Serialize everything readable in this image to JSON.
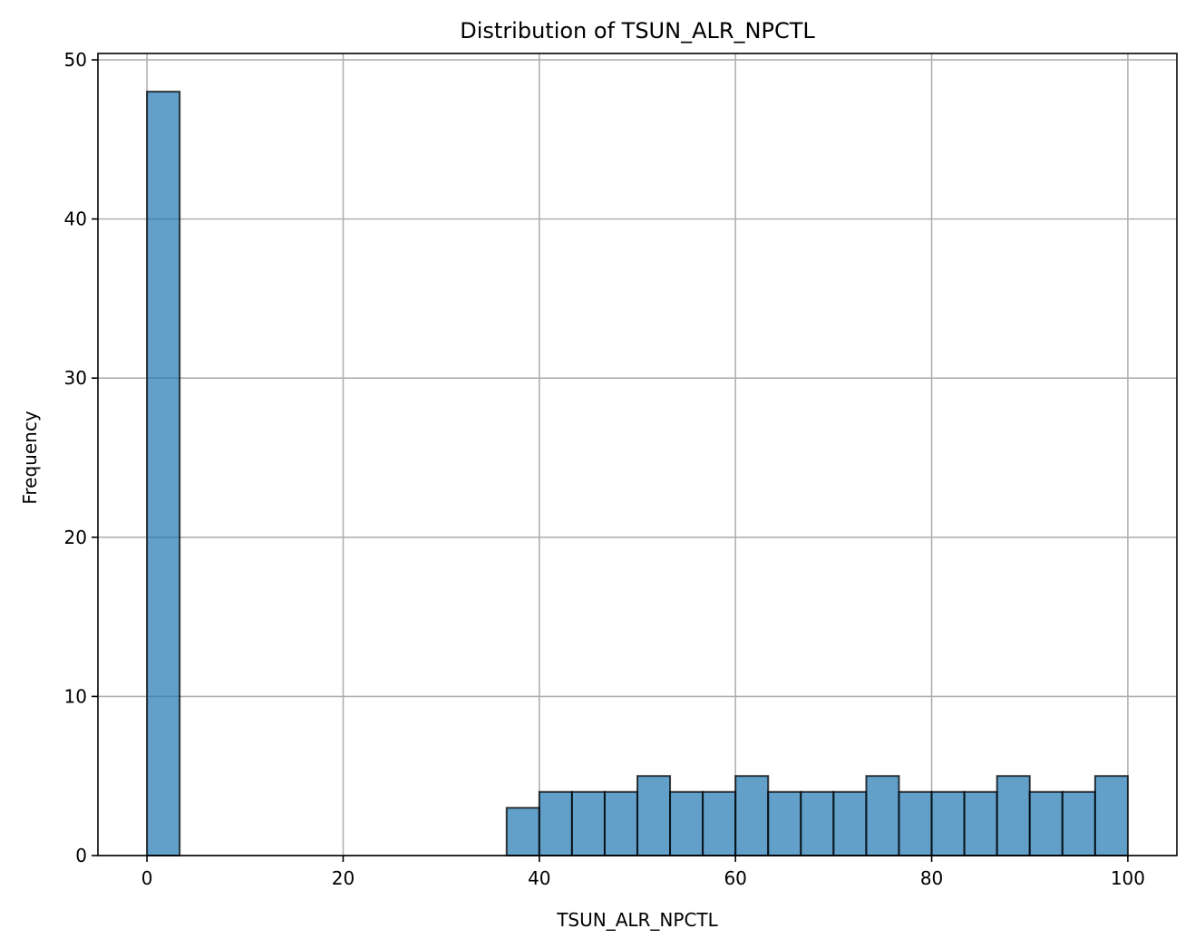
{
  "chart_data": {
    "type": "bar",
    "subtype": "histogram",
    "title": "Distribution of TSUN_ALR_NPCTL",
    "xlabel": "TSUN_ALR_NPCTL",
    "ylabel": "Frequency",
    "xlim": [
      -5,
      105
    ],
    "ylim": [
      0,
      50.4
    ],
    "xticks": [
      0,
      20,
      40,
      60,
      80,
      100
    ],
    "xtick_labels": [
      "0",
      "20",
      "40",
      "60",
      "80",
      "100"
    ],
    "yticks": [
      0,
      10,
      20,
      30,
      40,
      50
    ],
    "ytick_labels": [
      "0",
      "10",
      "20",
      "30",
      "40",
      "50"
    ],
    "grid": true,
    "bar_color": "#1f77b4",
    "bar_alpha": 0.7,
    "edge_color": "#000000",
    "bins": [
      {
        "x0": 0.0,
        "x1": 3.333,
        "count": 48
      },
      {
        "x0": 36.667,
        "x1": 40.0,
        "count": 3
      },
      {
        "x0": 40.0,
        "x1": 43.333,
        "count": 4
      },
      {
        "x0": 43.333,
        "x1": 46.667,
        "count": 4
      },
      {
        "x0": 46.667,
        "x1": 50.0,
        "count": 4
      },
      {
        "x0": 50.0,
        "x1": 53.333,
        "count": 5
      },
      {
        "x0": 53.333,
        "x1": 56.667,
        "count": 4
      },
      {
        "x0": 56.667,
        "x1": 60.0,
        "count": 4
      },
      {
        "x0": 60.0,
        "x1": 63.333,
        "count": 5
      },
      {
        "x0": 63.333,
        "x1": 66.667,
        "count": 4
      },
      {
        "x0": 66.667,
        "x1": 70.0,
        "count": 4
      },
      {
        "x0": 70.0,
        "x1": 73.333,
        "count": 4
      },
      {
        "x0": 73.333,
        "x1": 76.667,
        "count": 5
      },
      {
        "x0": 76.667,
        "x1": 80.0,
        "count": 4
      },
      {
        "x0": 80.0,
        "x1": 83.333,
        "count": 4
      },
      {
        "x0": 83.333,
        "x1": 86.667,
        "count": 4
      },
      {
        "x0": 86.667,
        "x1": 90.0,
        "count": 5
      },
      {
        "x0": 90.0,
        "x1": 93.333,
        "count": 4
      },
      {
        "x0": 93.333,
        "x1": 96.667,
        "count": 4
      },
      {
        "x0": 96.667,
        "x1": 100.0,
        "count": 5
      }
    ]
  }
}
